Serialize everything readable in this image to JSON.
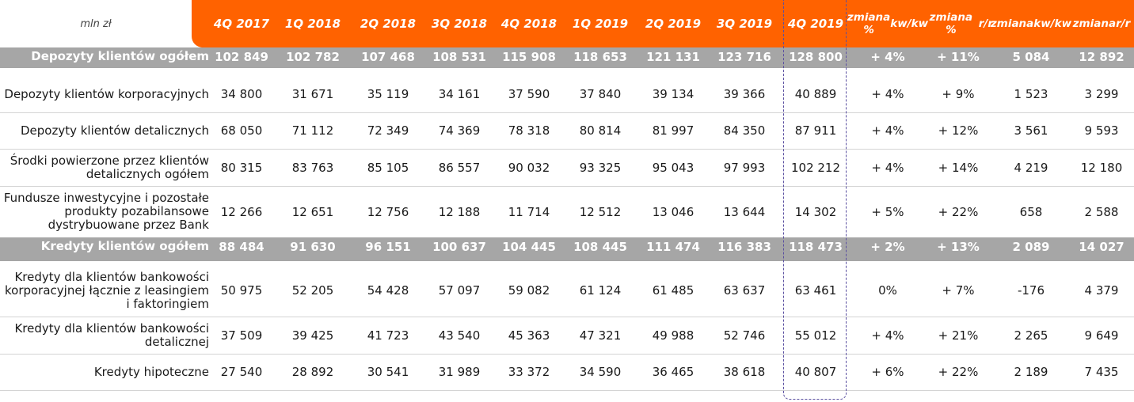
{
  "unit": "mln zł",
  "columns": [
    "4Q 2017",
    "1Q 2018",
    "2Q 2018",
    "3Q 2018",
    "4Q 2018",
    "1Q 2019",
    "2Q 2019",
    "3Q 2019",
    "4Q 2019"
  ],
  "change_columns": [
    {
      "line1": "zmiana %",
      "line2": "kw/kw"
    },
    {
      "line1": "zmiana %",
      "line2": "r/r"
    },
    {
      "line1": "zmiana",
      "line2": "kw/kw"
    },
    {
      "line1": "zmiana",
      "line2": "r/r"
    }
  ],
  "rows": [
    {
      "label": "Depozyty klientów ogółem",
      "total": true,
      "values": [
        "102 849",
        "102 782",
        "107 468",
        "108 531",
        "115 908",
        "118 653",
        "121 131",
        "123 716",
        "128 800"
      ],
      "changes": [
        "+ 4%",
        "+ 11%",
        "5 084",
        "12 892"
      ]
    },
    {
      "label": "Depozyty klientów korporacyjnych",
      "total": false,
      "values": [
        "34 800",
        "31 671",
        "35 119",
        "34 161",
        "37 590",
        "37 840",
        "39 134",
        "39 366",
        "40 889"
      ],
      "changes": [
        "+ 4%",
        "+ 9%",
        "1 523",
        "3 299"
      ]
    },
    {
      "label": "Depozyty klientów detalicznych",
      "total": false,
      "values": [
        "68 050",
        "71 112",
        "72 349",
        "74 369",
        "78 318",
        "80 814",
        "81 997",
        "84 350",
        "87 911"
      ],
      "changes": [
        "+ 4%",
        "+ 12%",
        "3 561",
        "9 593"
      ]
    },
    {
      "label": "Środki powierzone przez klientów detalicznych ogółem",
      "total": false,
      "values": [
        "80 315",
        "83 763",
        "85 105",
        "86 557",
        "90 032",
        "93 325",
        "95 043",
        "97 993",
        "102 212"
      ],
      "changes": [
        "+ 4%",
        "+ 14%",
        "4 219",
        "12 180"
      ]
    },
    {
      "label": "Fundusze inwestycyjne i pozostałe produkty pozabilansowe dystrybuowane przez Bank",
      "total": false,
      "values": [
        "12 266",
        "12 651",
        "12 756",
        "12 188",
        "11 714",
        "12 512",
        "13 046",
        "13 644",
        "14 302"
      ],
      "changes": [
        "+ 5%",
        "+ 22%",
        "658",
        "2 588"
      ]
    },
    {
      "label": "Kredyty klientów ogółem",
      "total": true,
      "values": [
        "88 484",
        "91 630",
        "96 151",
        "100 637",
        "104 445",
        "108 445",
        "111 474",
        "116 383",
        "118 473"
      ],
      "changes": [
        "+ 2%",
        "+ 13%",
        "2 089",
        "14 027"
      ]
    },
    {
      "label": "Kredyty dla klientów bankowości korporacyjnej łącznie z leasingiem i faktoringiem",
      "total": false,
      "values": [
        "50 975",
        "52 205",
        "54 428",
        "57 097",
        "59 082",
        "61 124",
        "61 485",
        "63 637",
        "63 461"
      ],
      "changes": [
        "0%",
        "+ 7%",
        "-176",
        "4 379"
      ]
    },
    {
      "label": "Kredyty dla klientów bankowości detalicznej",
      "total": false,
      "values": [
        "37 509",
        "39 425",
        "41 723",
        "43 540",
        "45 363",
        "47 321",
        "49 988",
        "52 746",
        "55 012"
      ],
      "changes": [
        "+ 4%",
        "+ 21%",
        "2 265",
        "9 649"
      ]
    },
    {
      "label": "Kredyty hipoteczne",
      "total": false,
      "values": [
        "27 540",
        "28 892",
        "30 541",
        "31 989",
        "33 372",
        "34 590",
        "36 465",
        "38 618",
        "40 807"
      ],
      "changes": [
        "+ 6%",
        "+ 22%",
        "2 189",
        "7 435"
      ]
    }
  ],
  "colors": {
    "accent": "#ff6200",
    "total_row": "#a6a6a6",
    "highlight_border": "#5a4fa0"
  }
}
